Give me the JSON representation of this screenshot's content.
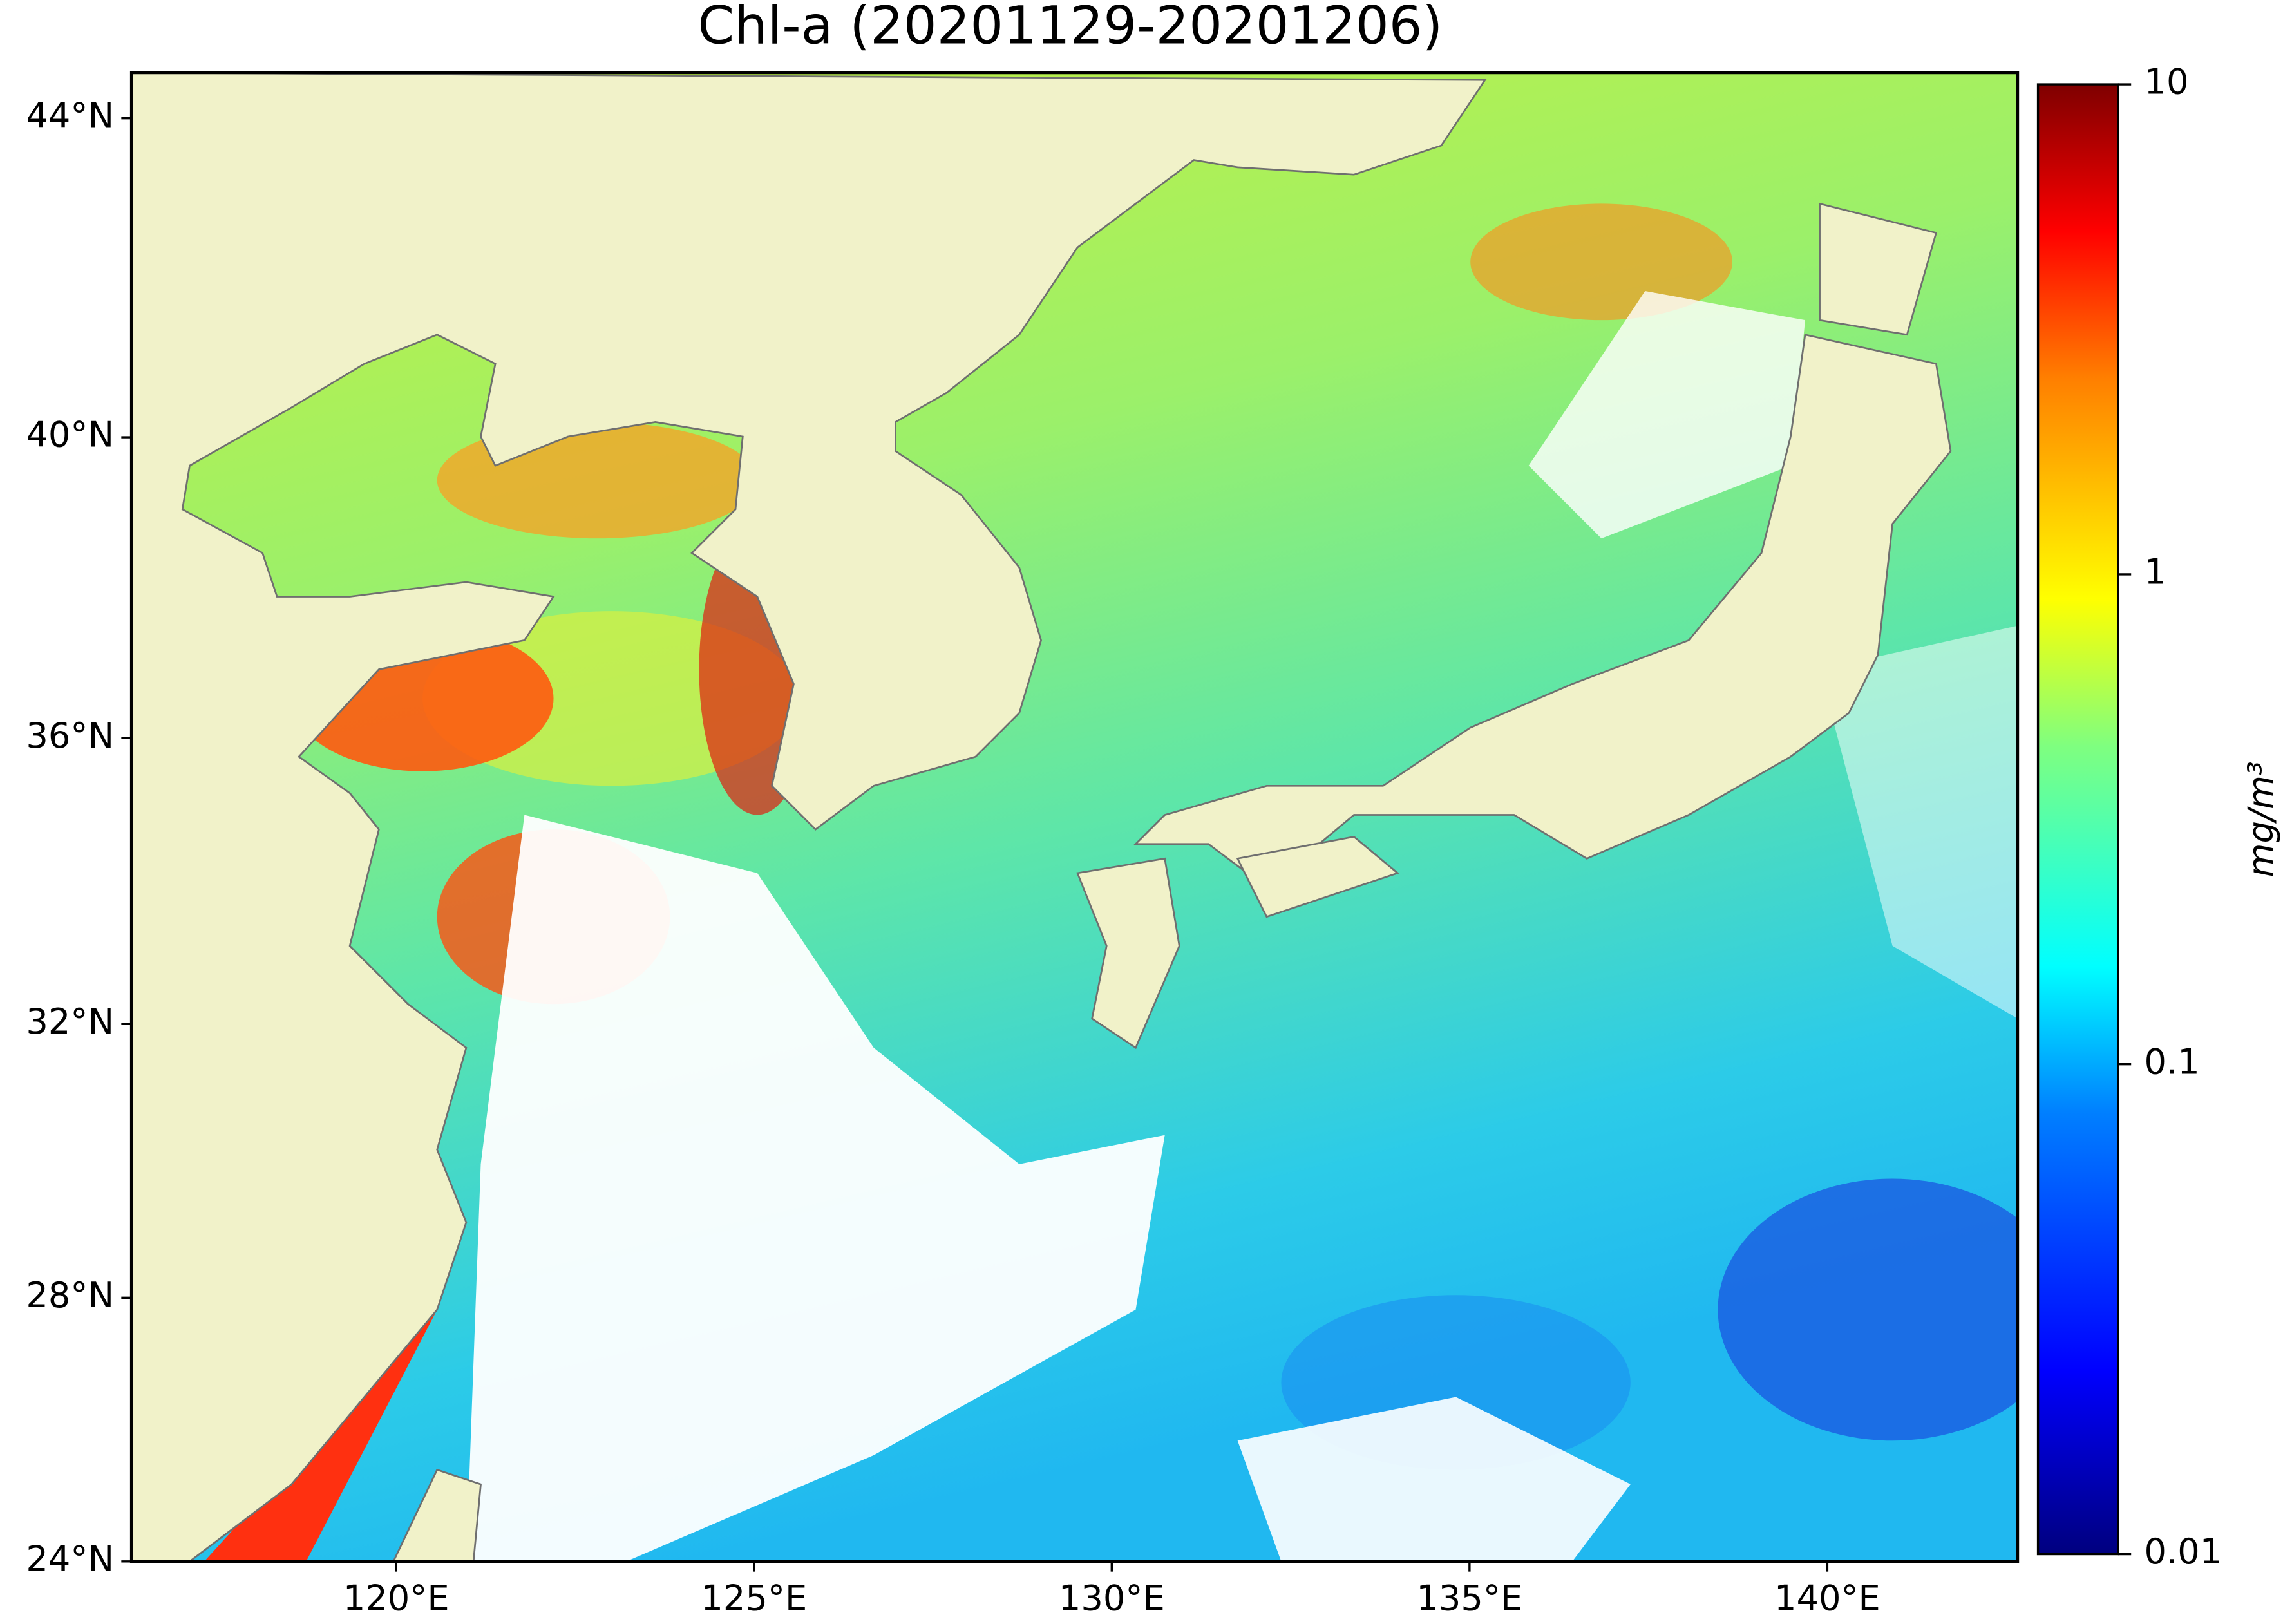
{
  "title": "Chl-a (20201129-20201206)",
  "map": {
    "xlim": [
      116.3,
      142.66
    ],
    "ylim": [
      24,
      44.55
    ],
    "xticks": [
      {
        "value": 120,
        "label": "120°E"
      },
      {
        "value": 125,
        "label": "125°E"
      },
      {
        "value": 130,
        "label": "130°E"
      },
      {
        "value": 135,
        "label": "135°E"
      },
      {
        "value": 140,
        "label": "140°E"
      }
    ],
    "yticks": [
      {
        "value": 24,
        "label": "24°N"
      },
      {
        "value": 28,
        "label": "28°N"
      },
      {
        "value": 32,
        "label": "32°N"
      },
      {
        "value": 36,
        "label": "36°N"
      },
      {
        "value": 40,
        "label": "40°N"
      },
      {
        "value": 44,
        "label": "44°N"
      }
    ]
  },
  "colorbar": {
    "label": "mg/m³",
    "scale": "log",
    "lim": [
      0.01,
      10
    ],
    "ticks": [
      0.01,
      0.1,
      1,
      10
    ]
  }
}
